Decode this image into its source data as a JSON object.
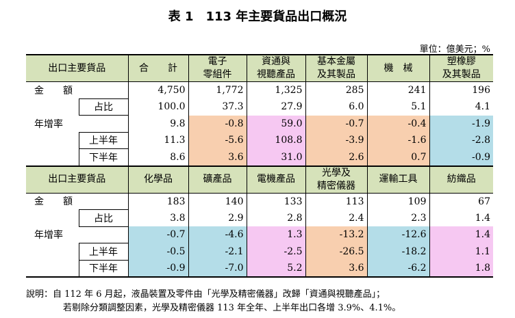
{
  "title": "表 1　113 年主要貨品出口概況",
  "unit": "單位：億美元；%",
  "section1": {
    "header_label": "出口主要貨品",
    "columns": [
      "合　　計",
      "電子\n零組件",
      "資通與\n視聽產品",
      "基本金屬\n及其製品",
      "機　械",
      "塑橡膠\n及其製品"
    ],
    "rows": {
      "amount": {
        "label": "金　　額",
        "values": [
          "4,750",
          "1,772",
          "1,325",
          "285",
          "241",
          "196"
        ]
      },
      "share": {
        "label": "占比",
        "values": [
          "100.0",
          "37.3",
          "27.9",
          "6.0",
          "5.1",
          "4.1"
        ]
      },
      "growth": {
        "label": "年增率",
        "values": [
          "9.8",
          "-0.8",
          "59.0",
          "-0.7",
          "-0.4",
          "-1.9"
        ]
      },
      "h1": {
        "label": "上半年",
        "values": [
          "11.3",
          "-5.6",
          "108.8",
          "-3.9",
          "-1.6",
          "-2.8"
        ]
      },
      "h2": {
        "label": "下半年",
        "values": [
          "8.6",
          "3.6",
          "31.0",
          "2.6",
          "0.7",
          "-0.9"
        ]
      }
    }
  },
  "section2": {
    "header_label": "出口主要貨品",
    "columns": [
      "化學品",
      "礦產品",
      "電機產品",
      "光學及\n精密儀器",
      "運輸工具",
      "紡織品"
    ],
    "rows": {
      "amount": {
        "label": "金　　額",
        "values": [
          "183",
          "140",
          "133",
          "113",
          "109",
          "67"
        ]
      },
      "share": {
        "label": "占比",
        "values": [
          "3.8",
          "2.9",
          "2.8",
          "2.4",
          "2.3",
          "1.4"
        ]
      },
      "growth": {
        "label": "年增率",
        "values": [
          "-0.7",
          "-4.6",
          "1.3",
          "-13.2",
          "-12.6",
          "1.4"
        ]
      },
      "h1": {
        "label": "上半年",
        "values": [
          "-0.5",
          "-2.1",
          "-2.5",
          "-26.5",
          "-18.2",
          "1.1"
        ]
      },
      "h2": {
        "label": "下半年",
        "values": [
          "-0.9",
          "-7.0",
          "5.2",
          "3.6",
          "-6.2",
          "1.8"
        ]
      }
    }
  },
  "notes": [
    "說明：自 112 年 6 月起，液晶裝置及零件由「光學及精密儀器」改歸「資通與視聽產品」；",
    "若剔除分類調整因素，光學及精密儀器 113 年全年、上半年出口各增 3.9%、4.1%。"
  ],
  "colors": {
    "header_green": "#d6e2ba",
    "decline_orange": "#f8cfaf",
    "growth_pink": "#f6c8f2",
    "decline_blue": "#b4dde8"
  }
}
